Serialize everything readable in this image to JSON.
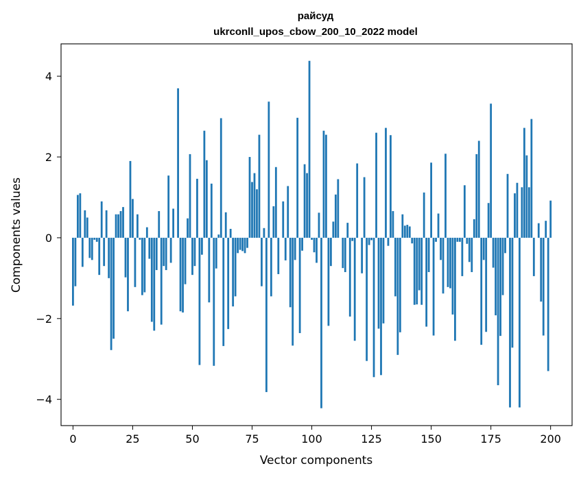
{
  "chart_data": {
    "type": "bar",
    "title": "райсуд",
    "subtitle": "ukrconll_upos_cbow_200_10_2022 model",
    "xlabel": "Vector components",
    "ylabel": "Components values",
    "xlim": [
      -5,
      209
    ],
    "ylim": [
      -4.65,
      4.8
    ],
    "xticks": [
      0,
      25,
      50,
      75,
      100,
      125,
      150,
      175,
      200
    ],
    "yticks": [
      -4,
      -2,
      0,
      2,
      4
    ],
    "xtick_labels": [
      "0",
      "25",
      "50",
      "75",
      "100",
      "125",
      "150",
      "175",
      "200"
    ],
    "ytick_labels": [
      "−4",
      "−2",
      "0",
      "2",
      "4"
    ],
    "grid": false,
    "bar_color": "#1f77b4",
    "values": [
      -1.68,
      -1.2,
      1.06,
      1.1,
      -0.72,
      0.68,
      0.5,
      -0.5,
      -0.55,
      -0.05,
      -0.1,
      -0.92,
      0.9,
      -0.7,
      0.68,
      -1.0,
      -2.78,
      -2.5,
      0.58,
      0.58,
      0.66,
      0.76,
      -0.98,
      -1.82,
      1.9,
      0.96,
      -1.22,
      0.58,
      -0.05,
      -1.42,
      -1.35,
      0.26,
      -0.52,
      -2.08,
      -2.3,
      -0.8,
      0.66,
      -2.15,
      -0.7,
      -0.8,
      1.54,
      -0.62,
      0.72,
      0.0,
      3.7,
      -1.82,
      -1.85,
      -1.15,
      0.48,
      2.07,
      -0.92,
      -0.7,
      1.46,
      -3.15,
      -0.42,
      2.65,
      1.92,
      -1.6,
      1.34,
      -3.17,
      -0.76,
      0.08,
      2.96,
      -2.68,
      0.63,
      -2.26,
      0.22,
      -1.7,
      -1.45,
      -0.38,
      -0.3,
      -0.33,
      -0.38,
      -0.25,
      2.0,
      1.38,
      1.6,
      1.2,
      2.55,
      -1.2,
      0.24,
      -3.82,
      3.37,
      -1.45,
      0.78,
      1.75,
      -0.9,
      0.0,
      0.9,
      -0.56,
      1.28,
      -1.72,
      -2.67,
      -0.55,
      2.97,
      -2.36,
      -0.32,
      1.82,
      1.6,
      4.38,
      -0.05,
      -0.36,
      -0.62,
      0.62,
      -4.22,
      2.65,
      2.55,
      -2.18,
      -0.7,
      0.4,
      1.07,
      1.45,
      0.0,
      -0.75,
      -0.85,
      0.37,
      -1.95,
      -0.08,
      -2.55,
      1.84,
      0.0,
      -0.88,
      1.5,
      -3.05,
      -0.18,
      -0.06,
      -3.45,
      2.6,
      -2.25,
      -3.4,
      -2.12,
      2.72,
      -0.2,
      2.54,
      0.66,
      -1.45,
      -2.9,
      -2.34,
      0.58,
      0.3,
      0.32,
      0.28,
      -0.14,
      -1.66,
      -1.65,
      -1.3,
      -1.66,
      1.12,
      -2.2,
      -0.85,
      1.86,
      -2.42,
      -0.1,
      0.6,
      -0.55,
      -1.38,
      2.08,
      -1.22,
      -1.25,
      -1.9,
      -2.55,
      -0.1,
      -0.1,
      -0.95,
      1.3,
      -0.15,
      -0.6,
      -0.85,
      0.46,
      2.07,
      2.4,
      -2.65,
      -0.55,
      -2.33,
      0.86,
      3.32,
      -0.74,
      -1.92,
      -3.65,
      -2.43,
      -1.42,
      -0.38,
      1.58,
      -4.2,
      -2.72,
      1.1,
      1.36,
      -4.2,
      1.25,
      2.72,
      2.04,
      1.25,
      2.94,
      -0.95,
      0.0,
      0.36,
      -1.58,
      -2.42,
      0.42,
      -3.3,
      0.92
    ]
  }
}
